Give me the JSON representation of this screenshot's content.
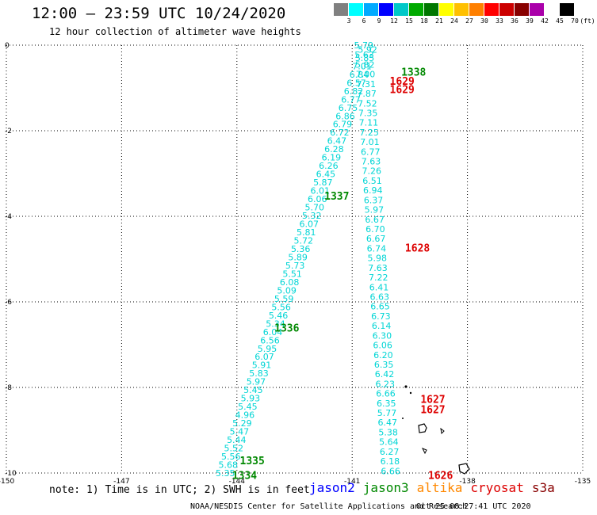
{
  "header": {
    "title": "12:00 – 23:59 UTC 10/24/2020",
    "subtitle": "12 hour collection of altimeter wave heights"
  },
  "scale": {
    "unit": "(ft)",
    "labels": [
      "3",
      "6",
      "9",
      "12",
      "15",
      "18",
      "21",
      "24",
      "27",
      "30",
      "33",
      "36",
      "39",
      "42",
      "45",
      "70"
    ],
    "colors": [
      "#808080",
      "#00ffff",
      "#00aaff",
      "#0000ff",
      "#00c8c8",
      "#00aa00",
      "#007700",
      "#ffff00",
      "#ffc000",
      "#ff8000",
      "#ff0000",
      "#cc0000",
      "#880000",
      "#aa00aa",
      "#ffffff",
      "#000000"
    ]
  },
  "footer": {
    "note": "note: 1) Time is in UTC; 2) SWH is in feet",
    "credit": "NOAA/NESDIS Center for Satellite Applications and Research",
    "stamp": "Oct 25 08:27:41 UTC 2020"
  },
  "satellites": [
    {
      "name": "jason2",
      "color": "#0000ff"
    },
    {
      "name": "jason3",
      "color": "#008800"
    },
    {
      "name": "altika",
      "color": "#ff8800"
    },
    {
      "name": "cryosat",
      "color": "#dd0000"
    },
    {
      "name": "s3a",
      "color": "#880000"
    }
  ],
  "chart_data": {
    "type": "scatter",
    "xlim": [
      -150,
      -135
    ],
    "ylim": [
      -10,
      0
    ],
    "x_ticks": [
      "-150",
      "-147",
      "-144",
      "-141",
      "-138",
      "-135"
    ],
    "y_ticks": [
      "0",
      "-2",
      "-4",
      "-6",
      "-8",
      "-10"
    ],
    "grid": true,
    "track_color": "#00d5d5",
    "series": [
      {
        "name": "track-west",
        "x_start": -144.3,
        "x_end": -140.6,
        "y_start": -10.0,
        "y_end": -0.1,
        "labels": [
          "5.35",
          "5.68",
          "5.56",
          "5.52",
          "5.44",
          "5.47",
          "5.29",
          "4.96",
          "5.45",
          "5.93",
          "5.45",
          "5.97",
          "5.83",
          "5.91",
          "6.07",
          "5.95",
          "6.56",
          "6.04",
          "5.34",
          "5.46",
          "5.56",
          "5.59",
          "5.09",
          "6.08",
          "5.51",
          "5.73",
          "5.89",
          "5.36",
          "5.72",
          "5.81",
          "6.07",
          "5.32",
          "5.70",
          "6.06",
          "6.01",
          "5.87",
          "6.45",
          "6.26",
          "6.19",
          "6.28",
          "6.47",
          "6.72",
          "6.79",
          "6.86",
          "6.75",
          "6.77",
          "6.82",
          "6.57",
          "6.84",
          "7.01",
          "5.85",
          "5.92"
        ]
      },
      {
        "name": "track-east",
        "x_start": -140.0,
        "x_end": -140.7,
        "y_start": -9.95,
        "y_end": 0.0,
        "labels": [
          "6.66",
          "6.18",
          "6.27",
          "5.64",
          "5.38",
          "6.47",
          "5.77",
          "6.35",
          "6.66",
          "6.23",
          "6.42",
          "6.35",
          "6.20",
          "6.06",
          "6.30",
          "6.14",
          "6.73",
          "6.65",
          "6.63",
          "6.41",
          "7.22",
          "7.63",
          "5.98",
          "6.74",
          "6.67",
          "6.70",
          "6.67",
          "5.97",
          "6.37",
          "6.94",
          "6.51",
          "7.26",
          "7.63",
          "6.77",
          "7.01",
          "7.25",
          "7.11",
          "7.35",
          "7.52",
          "7.87",
          "7.31",
          "7.00",
          "5.82",
          "5.63",
          "5.79"
        ]
      }
    ],
    "annotations": [
      {
        "text": "1338",
        "x": -139.4,
        "y": -0.62,
        "color": "#008800"
      },
      {
        "text": "1629",
        "x": -139.7,
        "y": -0.83,
        "color": "#dd0000"
      },
      {
        "text": "1629",
        "x": -139.7,
        "y": -1.03,
        "color": "#dd0000"
      },
      {
        "text": "1337",
        "x": -141.4,
        "y": -3.52,
        "color": "#008800"
      },
      {
        "text": "1628",
        "x": -139.3,
        "y": -4.73,
        "color": "#dd0000"
      },
      {
        "text": "1336",
        "x": -142.7,
        "y": -6.6,
        "color": "#008800"
      },
      {
        "text": "1627",
        "x": -138.9,
        "y": -8.27,
        "color": "#dd0000"
      },
      {
        "text": "1627",
        "x": -138.9,
        "y": -8.51,
        "color": "#dd0000"
      },
      {
        "text": "1335",
        "x": -143.6,
        "y": -9.7,
        "color": "#008800"
      },
      {
        "text": "1334",
        "x": -143.8,
        "y": -10.05,
        "color": "#008800"
      },
      {
        "text": "1626",
        "x": -138.7,
        "y": -10.05,
        "color": "#dd0000"
      }
    ]
  }
}
